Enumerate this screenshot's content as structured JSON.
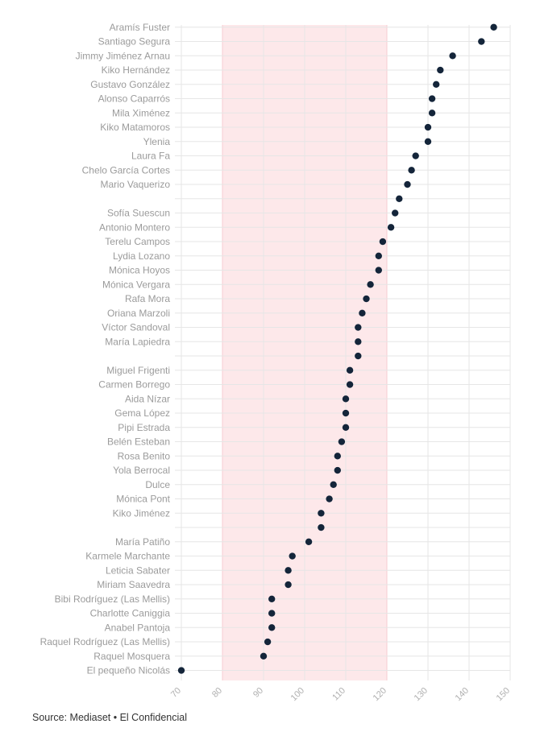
{
  "chart_data": {
    "type": "scatter",
    "orientation": "horizontal-dot-plot",
    "xlim": [
      70,
      150
    ],
    "x_ticks": [
      70,
      80,
      90,
      100,
      110,
      120,
      130,
      140,
      150
    ],
    "highlight_band": [
      80,
      120
    ],
    "grid": true,
    "colors": {
      "dot": "#14253a",
      "band": "#fde8ea",
      "band_edge": "#f7cdd2",
      "grid": "#e6e6e6",
      "label": "#9b9b9b"
    },
    "points": [
      {
        "label": "Aramís Fuster",
        "value": 146
      },
      {
        "label": "Santiago Segura",
        "value": 143
      },
      {
        "label": "Jimmy Jiménez Arnau",
        "value": 136
      },
      {
        "label": "Kiko Hernández",
        "value": 133
      },
      {
        "label": "Gustavo González",
        "value": 132
      },
      {
        "label": "Alonso Caparrós",
        "value": 131
      },
      {
        "label": "Mila Ximénez",
        "value": 131
      },
      {
        "label": "Kiko Matamoros",
        "value": 130
      },
      {
        "label": "Ylenia",
        "value": 130
      },
      {
        "label": "Laura Fa",
        "value": 127
      },
      {
        "label": "Chelo García Cortes",
        "value": 126
      },
      {
        "label": "Mario Vaquerizo",
        "value": 125
      },
      {
        "label": "",
        "value": 123
      },
      {
        "label": "Sofía Suescun",
        "value": 122
      },
      {
        "label": "Antonio Montero",
        "value": 121
      },
      {
        "label": "Terelu Campos",
        "value": 119
      },
      {
        "label": "Lydia Lozano",
        "value": 118
      },
      {
        "label": "Mónica Hoyos",
        "value": 118
      },
      {
        "label": "Mónica Vergara",
        "value": 116
      },
      {
        "label": "Rafa Mora",
        "value": 115
      },
      {
        "label": "Oriana Marzoli",
        "value": 114
      },
      {
        "label": "Víctor Sandoval",
        "value": 113
      },
      {
        "label": "María Lapiedra",
        "value": 113
      },
      {
        "label": "",
        "value": 113
      },
      {
        "label": "Miguel Frigenti",
        "value": 111
      },
      {
        "label": "Carmen Borrego",
        "value": 111
      },
      {
        "label": "Aida Nízar",
        "value": 110
      },
      {
        "label": "Gema López",
        "value": 110
      },
      {
        "label": "Pipi Estrada",
        "value": 110
      },
      {
        "label": "Belén Esteban",
        "value": 109
      },
      {
        "label": "Rosa Benito",
        "value": 108
      },
      {
        "label": "Yola Berrocal",
        "value": 108
      },
      {
        "label": "Dulce",
        "value": 107
      },
      {
        "label": "Mónica Pont",
        "value": 106
      },
      {
        "label": "Kiko Jiménez",
        "value": 104
      },
      {
        "label": "",
        "value": 104
      },
      {
        "label": "María Patiño",
        "value": 101
      },
      {
        "label": "Karmele Marchante",
        "value": 97
      },
      {
        "label": "Leticia Sabater",
        "value": 96
      },
      {
        "label": "Miriam Saavedra",
        "value": 96
      },
      {
        "label": "Bibi Rodríguez (Las Mellis)",
        "value": 92
      },
      {
        "label": "Charlotte Caniggia",
        "value": 92
      },
      {
        "label": "Anabel Pantoja",
        "value": 92
      },
      {
        "label": "Raquel Rodríguez (Las Mellis)",
        "value": 91
      },
      {
        "label": "Raquel Mosquera",
        "value": 90
      },
      {
        "label": "El pequeño Nicolás",
        "value": 70
      }
    ]
  },
  "source": "Source: Mediaset • El Confidencial"
}
